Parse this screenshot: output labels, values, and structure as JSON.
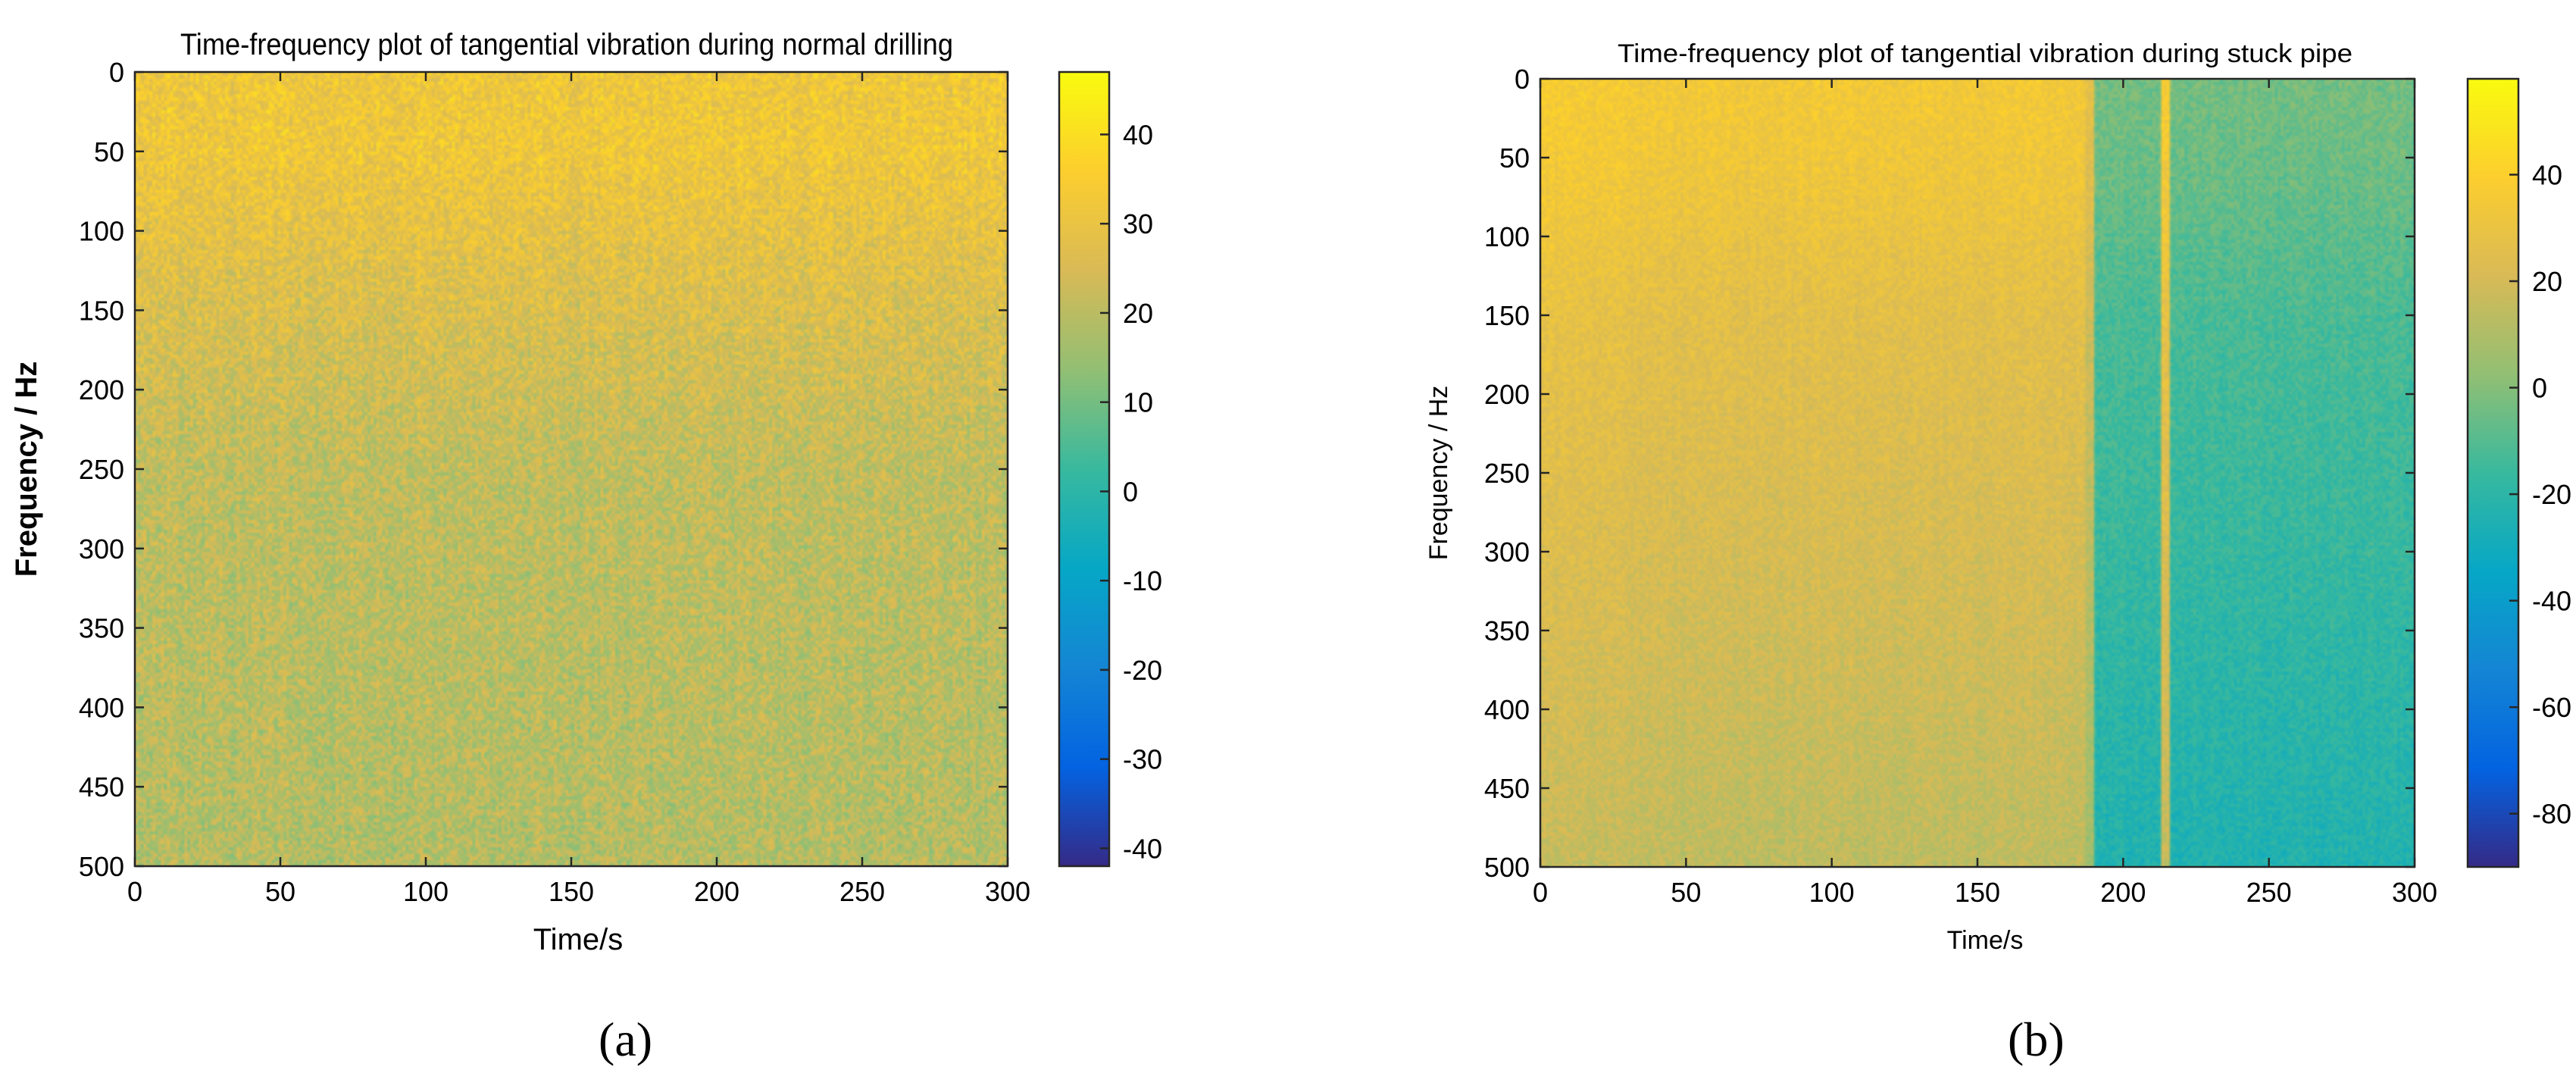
{
  "chart_data": [
    {
      "type": "heatmap",
      "title": "Time-frequency plot of tangential vibration during normal drilling",
      "xlabel": "Time/s",
      "ylabel": "Frequency / Hz",
      "xlim": [
        0,
        300
      ],
      "ylim": [
        0,
        500
      ],
      "y_direction": "reversed",
      "x_ticks": [
        0,
        50,
        100,
        150,
        200,
        250,
        300
      ],
      "y_ticks": [
        0,
        50,
        100,
        150,
        200,
        250,
        300,
        350,
        400,
        450,
        500
      ],
      "colorbar": {
        "min": -42,
        "max": 47,
        "ticks": [
          40,
          30,
          20,
          10,
          0,
          -10,
          -20,
          -30,
          -40
        ],
        "colormap": "parula"
      },
      "frequency_profile": [
        {
          "freq_hz": 0,
          "level": 32
        },
        {
          "freq_hz": 50,
          "level": 32
        },
        {
          "freq_hz": 80,
          "level": 30
        },
        {
          "freq_hz": 150,
          "level": 26
        },
        {
          "freq_hz": 250,
          "level": 21
        },
        {
          "freq_hz": 500,
          "level": 19
        }
      ],
      "time_segments": [
        {
          "t_start": 0,
          "t_end": 300,
          "offset": 0
        }
      ],
      "noise_amplitude": 7,
      "subplot_label": "(a)"
    },
    {
      "type": "heatmap",
      "title": "Time-frequency plot of tangential vibration during stuck pipe",
      "xlabel": "Time/s",
      "ylabel": "Frequency / Hz",
      "xlim": [
        0,
        300
      ],
      "ylim": [
        0,
        500
      ],
      "y_direction": "reversed",
      "x_ticks": [
        0,
        50,
        100,
        150,
        200,
        250,
        300
      ],
      "y_ticks": [
        0,
        50,
        100,
        150,
        200,
        250,
        300,
        350,
        400,
        450,
        500
      ],
      "colorbar": {
        "min": -90,
        "max": 58,
        "ticks": [
          40,
          20,
          0,
          -20,
          -40,
          -60,
          -80
        ],
        "colormap": "parula"
      },
      "frequency_profile": [
        {
          "freq_hz": 0,
          "level": 35
        },
        {
          "freq_hz": 70,
          "level": 32
        },
        {
          "freq_hz": 150,
          "level": 26
        },
        {
          "freq_hz": 300,
          "level": 21
        },
        {
          "freq_hz": 500,
          "level": 14
        }
      ],
      "time_segments": [
        {
          "t_start": 0,
          "t_end": 30,
          "offset": 2
        },
        {
          "t_start": 30,
          "t_end": 187,
          "offset": 0
        },
        {
          "t_start": 187,
          "t_end": 190,
          "offset": -8
        },
        {
          "t_start": 190,
          "t_end": 213,
          "offset": -38
        },
        {
          "t_start": 213,
          "t_end": 216,
          "offset": 3
        },
        {
          "t_start": 216,
          "t_end": 300,
          "offset": -38
        }
      ],
      "noise_amplitude": 6,
      "subplot_label": "(b)"
    }
  ]
}
